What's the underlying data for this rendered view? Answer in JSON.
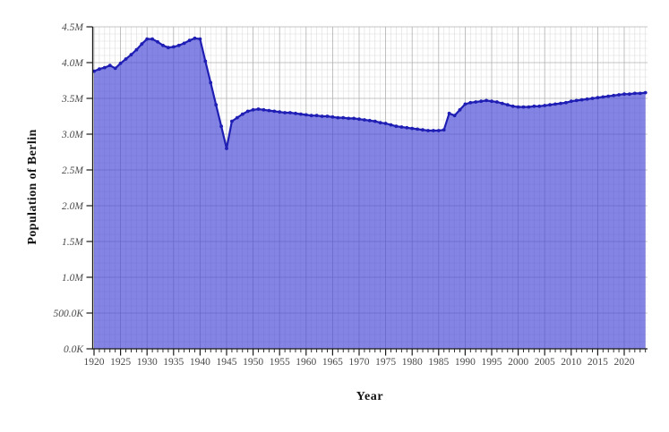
{
  "chart_data": {
    "type": "area",
    "title": "",
    "xlabel": "Year",
    "ylabel": "Population of Berlin",
    "legend_position": "none",
    "grid": "on",
    "xlim": [
      1919.75,
      2024.4
    ],
    "ylim": [
      0,
      4.5
    ],
    "x_start_year": 1920,
    "x_end_year": 2024,
    "x_major_tick_labels": [
      "1920",
      "1925",
      "1930",
      "1935",
      "1940",
      "1945",
      "1950",
      "1955",
      "1960",
      "1965",
      "1970",
      "1975",
      "1980",
      "1985",
      "1990",
      "1995",
      "2000",
      "2005",
      "2010",
      "2015",
      "2020"
    ],
    "x_minor_tick_step_years": 1,
    "y_ticks": [
      {
        "v": 0.0,
        "label": "0.0K"
      },
      {
        "v": 0.5,
        "label": "500.0K"
      },
      {
        "v": 1.0,
        "label": "1.0M"
      },
      {
        "v": 1.5,
        "label": "1.5M"
      },
      {
        "v": 2.0,
        "label": "2.0M"
      },
      {
        "v": 2.5,
        "label": "2.5M"
      },
      {
        "v": 3.0,
        "label": "3.0M"
      },
      {
        "v": 3.5,
        "label": "3.5M"
      },
      {
        "v": 4.0,
        "label": "4.0M"
      },
      {
        "v": 4.5,
        "label": "4.5M"
      }
    ],
    "y_minor_step_millions": 0.1,
    "series": [
      {
        "name": "Population of Berlin",
        "units": "millions",
        "x_first_year": 1920,
        "values_millions": [
          3.88,
          3.91,
          3.93,
          3.96,
          3.92,
          3.99,
          4.05,
          4.11,
          4.18,
          4.26,
          4.33,
          4.33,
          4.29,
          4.24,
          4.21,
          4.22,
          4.24,
          4.27,
          4.31,
          4.34,
          4.33,
          4.02,
          3.72,
          3.41,
          3.11,
          2.8,
          3.18,
          3.23,
          3.28,
          3.32,
          3.34,
          3.35,
          3.34,
          3.33,
          3.32,
          3.31,
          3.3,
          3.3,
          3.29,
          3.28,
          3.27,
          3.26,
          3.26,
          3.25,
          3.25,
          3.24,
          3.23,
          3.23,
          3.22,
          3.22,
          3.21,
          3.2,
          3.19,
          3.18,
          3.16,
          3.15,
          3.13,
          3.11,
          3.1,
          3.09,
          3.08,
          3.07,
          3.06,
          3.05,
          3.05,
          3.05,
          3.06,
          3.29,
          3.26,
          3.34,
          3.42,
          3.44,
          3.45,
          3.46,
          3.47,
          3.46,
          3.45,
          3.43,
          3.41,
          3.39,
          3.38,
          3.38,
          3.38,
          3.39,
          3.39,
          3.4,
          3.41,
          3.42,
          3.43,
          3.44,
          3.46,
          3.47,
          3.48,
          3.49,
          3.5,
          3.51,
          3.52,
          3.53,
          3.54,
          3.55,
          3.56,
          3.56,
          3.57,
          3.57,
          3.58
        ]
      }
    ],
    "colors": {
      "area_fill": "#4444d6",
      "area_fill_opacity": "0.66",
      "line": "#1e1eb4",
      "marker": "#1e1eb4",
      "grid_minor": "#dddddd",
      "grid_major": "#b0b0b0",
      "axis": "#1a1a1a",
      "tick_label": "#4a4a4a",
      "axis_title": "#111111"
    }
  }
}
